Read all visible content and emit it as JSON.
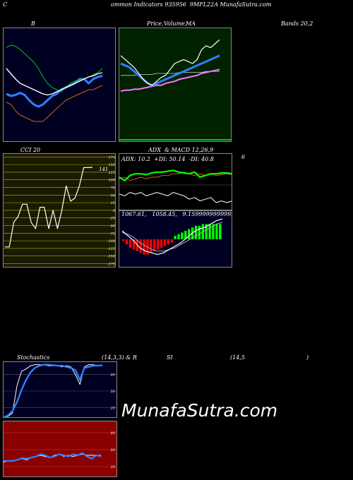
{
  "header": {
    "left": "C",
    "title": "ommon Indicators 935956  9MFL22A MunafaSutra.com"
  },
  "labels": {
    "b": "B",
    "price": "Price,",
    "volume": "Volume,",
    "ma": "MA",
    "bands": "Bands 20,2",
    "cci": "CCI 20",
    "adx_macd": "ADX  & MACD 12,26,9",
    "six": "6",
    "stoch": "Stochastics",
    "stoch_params": "(14,3,3) & R",
    "si": "SI",
    "rsi_params": "(14,5",
    "paren": ")"
  },
  "adx_text": "ADX: 10.2  +DI: 50.14  -DI: 40.8",
  "macd_text": "1067.61,   1058.45,   9.1599999999999",
  "cci_last": "141",
  "watermark": "MunafaSutra.com",
  "colors": {
    "navy": "#000022",
    "green_bg": "#002200",
    "olive_bg": "#1a1a00",
    "red_bg": "#8b0000",
    "blue": "#2f7fff",
    "orange": "#cc6600",
    "green": "#00cc00",
    "bright_green": "#00ff00",
    "pink": "#ff77ff",
    "red_bar": "#ff0000"
  },
  "chart_data": [
    {
      "type": "line",
      "panel": "bollinger",
      "series": [
        {
          "values": [
            46,
            44,
            45,
            47,
            45,
            40,
            36,
            34,
            36,
            40,
            44,
            46,
            50,
            52,
            54,
            56,
            60,
            60,
            56,
            60,
            62,
            63
          ]
        },
        {
          "values": [
            70,
            65,
            60,
            56,
            54,
            52,
            50,
            48,
            46,
            45,
            46,
            48,
            50,
            52,
            54,
            56,
            58,
            60,
            62,
            63,
            65,
            66
          ]
        },
        {
          "values": [
            90,
            92,
            91,
            88,
            84,
            80,
            76,
            70,
            62,
            56,
            52,
            50,
            48,
            52,
            56,
            58,
            60,
            60,
            62,
            64,
            66,
            70
          ]
        },
        {
          "values": [
            38,
            36,
            30,
            26,
            24,
            22,
            20,
            20,
            20,
            24,
            28,
            32,
            36,
            40,
            42,
            44,
            46,
            48,
            50,
            50,
            52,
            54
          ]
        }
      ]
    },
    {
      "type": "line",
      "panel": "price_ma",
      "series": [
        {
          "values": [
            88,
            84,
            80,
            76,
            70,
            64,
            60,
            58,
            62,
            66,
            68,
            74,
            80,
            82,
            84,
            82,
            80,
            84,
            94,
            98,
            96,
            100,
            104
          ]
        },
        {
          "values": [
            80,
            78,
            76,
            72,
            68,
            64,
            60,
            58,
            60,
            62,
            64,
            66,
            68,
            70,
            72,
            74,
            76,
            78,
            80,
            82,
            84,
            86,
            88
          ]
        },
        {
          "values": [
            52,
            53,
            53,
            54,
            54,
            55,
            56,
            57,
            58,
            58,
            60,
            61,
            62,
            64,
            65,
            66,
            67,
            68,
            70,
            71,
            72,
            73,
            74
          ]
        },
        {
          "values": [
            68,
            68,
            68,
            68,
            69,
            69,
            69,
            69,
            70,
            70,
            70,
            70,
            70,
            71,
            71,
            71,
            71,
            71,
            71,
            72,
            72,
            72,
            72
          ]
        }
      ]
    },
    {
      "type": "line",
      "panel": "cci",
      "yticks": [
        175,
        150,
        125,
        100,
        75,
        50,
        25,
        0,
        -25,
        -50,
        -75,
        -100,
        -125,
        -150,
        -175
      ],
      "ylim": [
        -190,
        185
      ],
      "values": [
        -120,
        -120,
        -40,
        -20,
        20,
        20,
        -40,
        -60,
        10,
        10,
        -60,
        0,
        -60,
        0,
        80,
        30,
        40,
        80,
        140,
        140,
        141
      ]
    },
    {
      "type": "line",
      "panel": "adx",
      "series": [
        {
          "values": [
            40,
            36,
            42,
            44,
            44,
            43,
            45,
            46,
            46,
            47,
            48,
            46,
            45,
            44,
            46,
            40,
            42,
            44,
            44,
            45,
            45,
            44
          ]
        },
        {
          "values": [
            38,
            40,
            36,
            38,
            40,
            38,
            40,
            40,
            42,
            42,
            44,
            44,
            46,
            44,
            42,
            44,
            42,
            44,
            42,
            43,
            44,
            43
          ]
        },
        {
          "values": [
            20,
            18,
            22,
            20,
            22,
            18,
            20,
            22,
            20,
            18,
            22,
            20,
            18,
            14,
            16,
            12,
            14,
            16,
            10,
            12,
            10,
            12
          ]
        }
      ]
    },
    {
      "type": "bar",
      "panel": "macd",
      "histogram": [
        -1,
        -3,
        -5,
        -6,
        -7,
        -8,
        -9,
        -9,
        -8,
        -7,
        -6,
        -5,
        -4,
        -3,
        -2,
        2,
        3,
        4,
        5,
        6,
        7,
        8,
        8,
        9,
        9,
        9,
        9,
        9,
        9
      ],
      "series": [
        {
          "values": [
            10,
            4,
            -2,
            -10,
            -14,
            -16,
            -18,
            -16,
            -12,
            -8,
            -4,
            2,
            8,
            12,
            14,
            18,
            22,
            24
          ]
        },
        {
          "values": [
            8,
            6,
            2,
            -4,
            -8,
            -12,
            -14,
            -14,
            -12,
            -10,
            -6,
            -2,
            2,
            6,
            10,
            14,
            18,
            20
          ]
        }
      ]
    },
    {
      "type": "line",
      "panel": "stochastics",
      "yticks": [
        80,
        50,
        20
      ],
      "ylim": [
        0,
        100
      ],
      "series": [
        {
          "values": [
            2,
            6,
            14,
            30,
            52,
            70,
            84,
            92,
            96,
            98,
            98,
            97,
            96,
            96,
            94,
            92,
            88,
            70,
            92,
            94,
            96,
            96,
            97
          ]
        },
        {
          "values": [
            2,
            4,
            10,
            60,
            86,
            90,
            96,
            98,
            98,
            98,
            96,
            96,
            96,
            94,
            96,
            94,
            80,
            62,
            94,
            98,
            98,
            96,
            96
          ]
        }
      ]
    },
    {
      "type": "line",
      "panel": "rsi",
      "yticks": [
        80,
        50,
        20
      ],
      "ylim": [
        0,
        100
      ],
      "series": [
        {
          "values": [
            30,
            30,
            30,
            32,
            35,
            34,
            36,
            38,
            42,
            40,
            36,
            38,
            42,
            40,
            38,
            42,
            40,
            44,
            38,
            34,
            40,
            38
          ]
        },
        {
          "values": [
            28,
            30,
            30,
            32,
            34,
            32,
            36,
            38,
            40,
            38,
            36,
            40,
            42,
            38,
            40,
            38,
            40,
            42,
            40,
            40,
            40,
            40
          ]
        }
      ]
    }
  ]
}
